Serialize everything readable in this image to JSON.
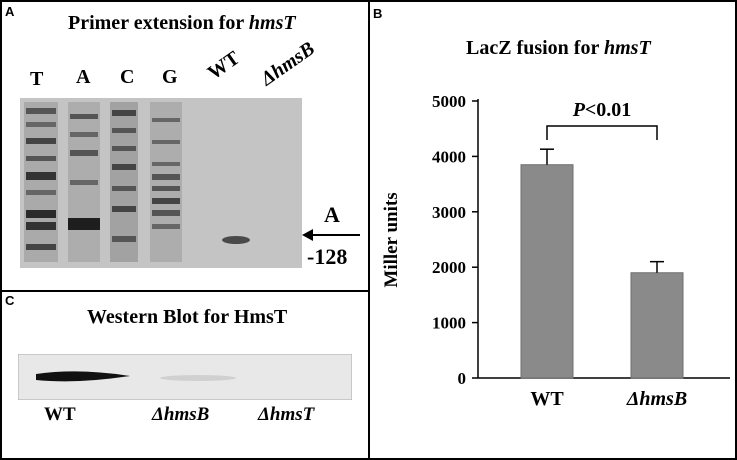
{
  "panel_a": {
    "letter": "A",
    "title_prefix": "Primer extension for ",
    "title_gene": "hmsT",
    "lanes": [
      "T",
      "A",
      "C",
      "G"
    ],
    "lane_wt": "WT",
    "lane_mut": "ΔhmsB",
    "arrow_label_top": "A",
    "arrow_label_bottom": "-128"
  },
  "panel_c": {
    "letter": "C",
    "title": "Western Blot for HmsT",
    "labels": [
      "WT",
      "ΔhmsB",
      "ΔhmsT"
    ]
  },
  "panel_b": {
    "letter": "B",
    "title_prefix": "LacZ fusion for ",
    "title_gene": "hmsT",
    "significance_p": "P",
    "significance_rest": "<0.01"
  },
  "chart_data": {
    "type": "bar",
    "categories": [
      "WT",
      "ΔhmsB"
    ],
    "values": [
      3850,
      1900
    ],
    "errors": [
      280,
      200
    ],
    "ylabel": "Miller units",
    "ylim": [
      0,
      5000
    ],
    "yticks": [
      0,
      1000,
      2000,
      3000,
      4000,
      5000
    ],
    "bar_color": "#8a8a8a"
  }
}
